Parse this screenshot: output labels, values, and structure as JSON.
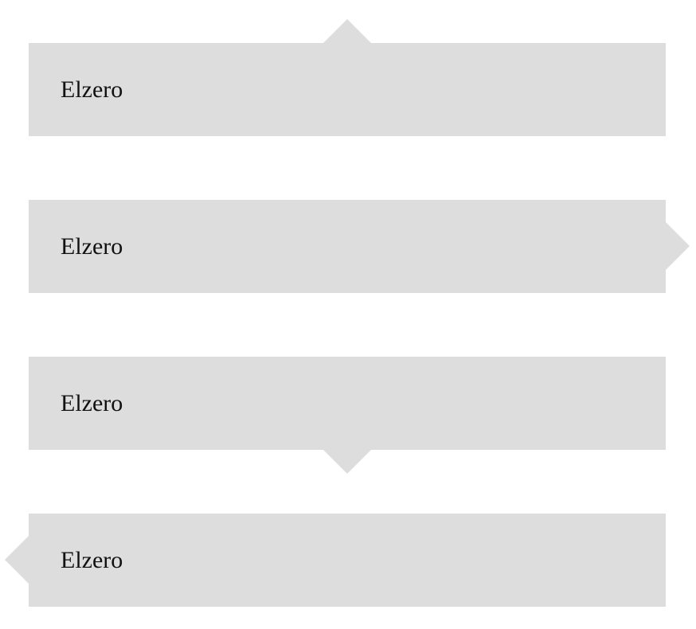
{
  "colors": {
    "box_background": "#dddddd",
    "text": "#111111",
    "page_background": "#ffffff"
  },
  "boxes": [
    {
      "label": "Elzero",
      "arrow_direction": "up"
    },
    {
      "label": "Elzero",
      "arrow_direction": "right"
    },
    {
      "label": "Elzero",
      "arrow_direction": "down"
    },
    {
      "label": "Elzero",
      "arrow_direction": "left"
    }
  ]
}
